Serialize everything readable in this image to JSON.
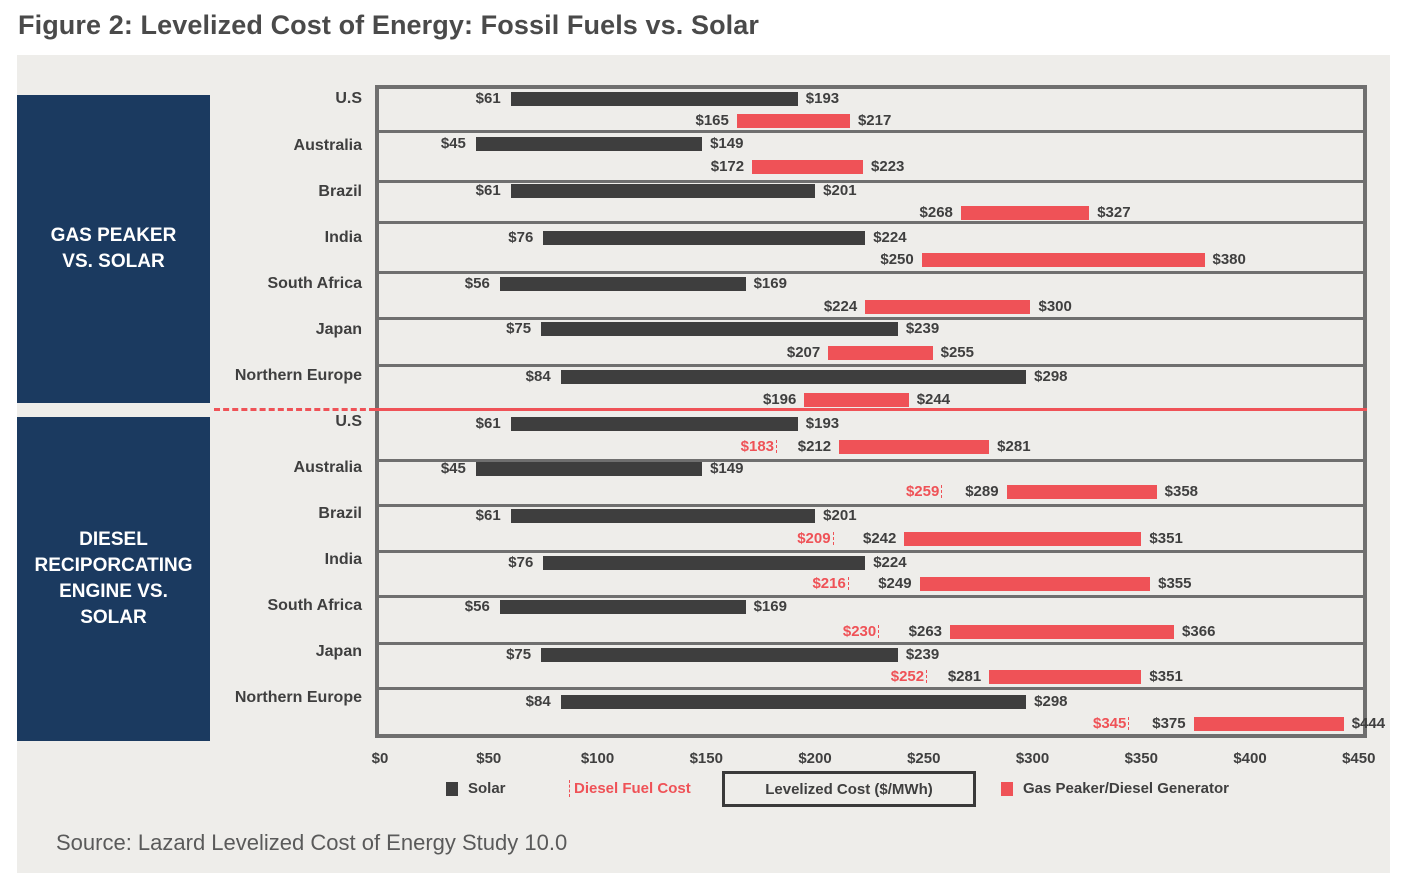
{
  "title": "Figure 2: Levelized Cost of Energy: Fossil Fuels vs. Solar",
  "source": "Source: Lazard Levelized Cost of Energy Study 10.0",
  "colors": {
    "solar": "#3e3e3e",
    "fossil": "#ef5257",
    "group_bg": "#1b3a60",
    "panel_bg": "#eeedea"
  },
  "chart_data": {
    "type": "bar",
    "subtype": "floating-range-horizontal",
    "title": "Figure 2: Levelized Cost of Energy: Fossil Fuels vs. Solar",
    "xlabel": "Levelized Cost ($/MWh)",
    "xlim": [
      0,
      450
    ],
    "x_ticks": [
      "$0",
      "$50",
      "$100",
      "$150",
      "$200",
      "$250",
      "$300",
      "$350",
      "$400",
      "$450"
    ],
    "grid": false,
    "legend": {
      "placement": "bottom",
      "entries": [
        "Solar",
        "Diesel Fuel Cost",
        "Levelized Cost ($/MWh)",
        "Gas Peaker/Diesel Generator"
      ]
    },
    "groups": [
      {
        "name": "GAS PEAKER VS. SOLAR",
        "rows": [
          {
            "country": "U.S",
            "solar": [
              61,
              193
            ],
            "fossil": [
              165,
              217
            ]
          },
          {
            "country": "Australia",
            "solar": [
              45,
              149
            ],
            "fossil": [
              172,
              223
            ]
          },
          {
            "country": "Brazil",
            "solar": [
              61,
              201
            ],
            "fossil": [
              268,
              327
            ]
          },
          {
            "country": "India",
            "solar": [
              76,
              224
            ],
            "fossil": [
              250,
              380
            ]
          },
          {
            "country": "South Africa",
            "solar": [
              56,
              169
            ],
            "fossil": [
              224,
              300
            ]
          },
          {
            "country": "Japan",
            "solar": [
              75,
              239
            ],
            "fossil": [
              207,
              255
            ]
          },
          {
            "country": "Northern Europe",
            "solar": [
              84,
              298
            ],
            "fossil": [
              196,
              244
            ]
          }
        ]
      },
      {
        "name": "DIESEL RECIPORCATING ENGINE VS. SOLAR",
        "rows": [
          {
            "country": "U.S",
            "solar": [
              61,
              193
            ],
            "fossil": [
              212,
              281
            ],
            "fuel_cost": 183
          },
          {
            "country": "Australia",
            "solar": [
              45,
              149
            ],
            "fossil": [
              289,
              358
            ],
            "fuel_cost": 259
          },
          {
            "country": "Brazil",
            "solar": [
              61,
              201
            ],
            "fossil": [
              242,
              351
            ],
            "fuel_cost": 209
          },
          {
            "country": "India",
            "solar": [
              76,
              224
            ],
            "fossil": [
              249,
              355
            ],
            "fuel_cost": 216
          },
          {
            "country": "South Africa",
            "solar": [
              56,
              169
            ],
            "fossil": [
              263,
              366
            ],
            "fuel_cost": 230
          },
          {
            "country": "Japan",
            "solar": [
              75,
              239
            ],
            "fossil": [
              281,
              351
            ],
            "fuel_cost": 252
          },
          {
            "country": "Northern Europe",
            "solar": [
              84,
              298
            ],
            "fossil": [
              375,
              444
            ],
            "fuel_cost": 345
          }
        ]
      }
    ]
  },
  "groups_display": [
    {
      "lines": [
        "GAS PEAKER",
        "VS. SOLAR"
      ]
    },
    {
      "lines": [
        "DIESEL",
        "RECIPORCATING",
        "ENGINE VS.",
        "SOLAR"
      ]
    }
  ]
}
